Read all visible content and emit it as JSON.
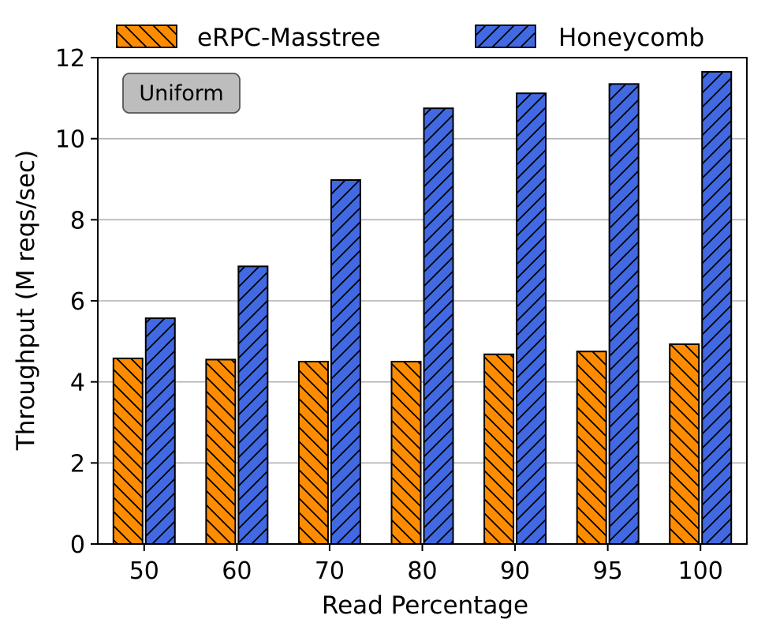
{
  "chart_data": {
    "type": "bar",
    "title": "",
    "xlabel": "Read Percentage",
    "ylabel": "Throughput (M reqs/sec)",
    "categories": [
      "50",
      "60",
      "70",
      "80",
      "90",
      "95",
      "100"
    ],
    "ylim": [
      0,
      12
    ],
    "yticks": [
      "0",
      "2",
      "4",
      "6",
      "8",
      "10",
      "12"
    ],
    "grid": "horizontal",
    "legend_position": "top",
    "annotation": "Uniform",
    "series": [
      {
        "name": "eRPC-Masstree",
        "color": "#ff8c00",
        "hatch": "backslash",
        "values": [
          4.58,
          4.55,
          4.5,
          4.5,
          4.68,
          4.75,
          4.93
        ]
      },
      {
        "name": "Honeycomb",
        "color": "#4169e1",
        "hatch": "slash",
        "values": [
          5.57,
          6.85,
          8.98,
          10.75,
          11.12,
          11.35,
          11.65
        ]
      }
    ]
  }
}
